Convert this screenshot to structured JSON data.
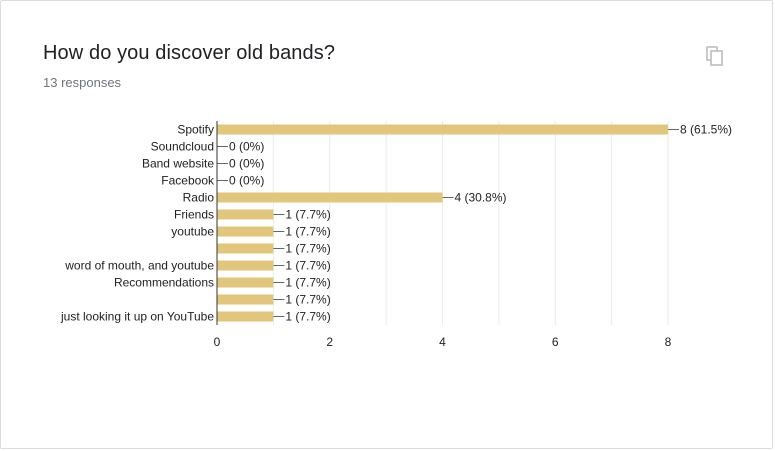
{
  "question": {
    "title": "How do you discover old bands?",
    "responses": "13 responses"
  },
  "icons": {
    "copy": "copy-icon"
  },
  "colors": {
    "bar": "#e1c67c",
    "axis": "#333333",
    "grid": "#ebebeb",
    "text": "#222222",
    "title": "#202124",
    "subtitle": "#70757a"
  },
  "chart_data": {
    "type": "bar",
    "orientation": "horizontal",
    "categories": [
      "Spotify",
      "Soundcloud",
      "Band website",
      "Facebook",
      "Radio",
      "Friends",
      "youtube",
      "",
      "word of mouth, and youtube",
      "Recommendations",
      "",
      "just looking it up on YouTube"
    ],
    "values": [
      8,
      0,
      0,
      0,
      4,
      1,
      1,
      1,
      1,
      1,
      1,
      1
    ],
    "data_labels": [
      "8 (61.5%)",
      "0 (0%)",
      "0 (0%)",
      "0 (0%)",
      "4 (30.8%)",
      "1 (7.7%)",
      "1 (7.7%)",
      "1 (7.7%)",
      "1 (7.7%)",
      "1 (7.7%)",
      "1 (7.7%)",
      "1 (7.7%)"
    ],
    "xlim": [
      0,
      8
    ],
    "xticks": [
      "0",
      "2",
      "4",
      "6",
      "8"
    ],
    "grid": true,
    "xlabel": "",
    "ylabel": ""
  }
}
